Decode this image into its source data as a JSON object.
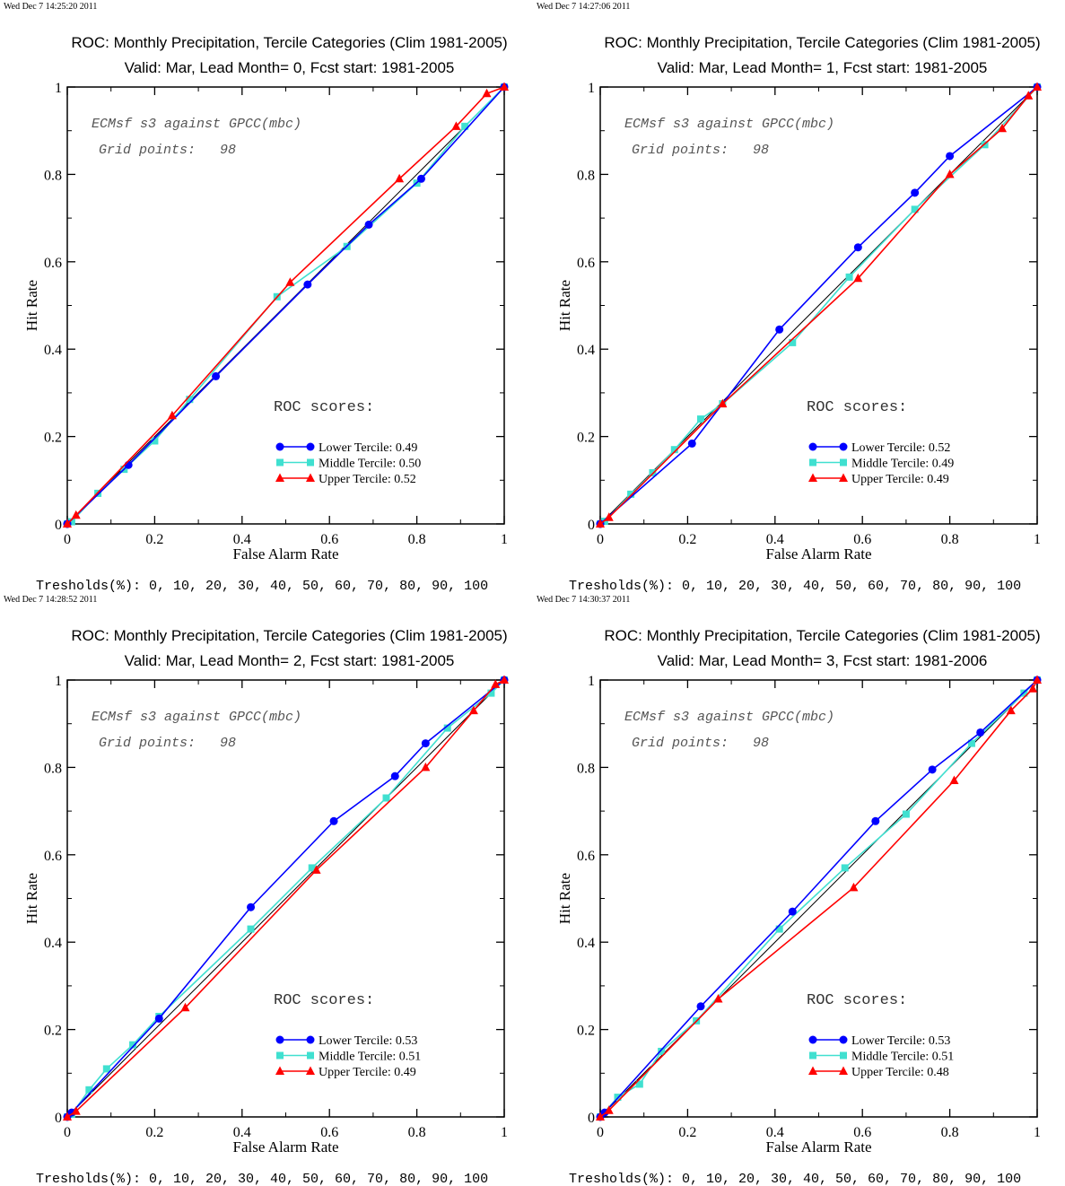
{
  "tresholds_label": "Tresholds(%): 0, 10, 20, 30, 40, 50, 60, 70, 80, 90, 100",
  "common": {
    "title": "ROC: Monthly Precipitation, Tercile Categories (Clim 1981-2005)",
    "xlabel": "False Alarm Rate",
    "ylabel": "Hit Rate",
    "annotation1": "ECMsf s3 against GPCC(mbc)",
    "annotation2": "Grid points:   98",
    "roc_scores_label": "ROC scores:",
    "xlim": [
      0,
      1
    ],
    "ylim": [
      0,
      1
    ],
    "xticks": [
      "0",
      "0.2",
      "0.4",
      "0.6",
      "0.8",
      "1"
    ],
    "yticks": [
      "0",
      "0.2",
      "0.4",
      "0.6",
      "0.8",
      "1"
    ],
    "colors": {
      "lower": "#0000ff",
      "middle": "#40e0d0",
      "upper": "#ff0000",
      "diagonal": "#000000"
    }
  },
  "chart_data": [
    {
      "type": "line",
      "timestamp": "Wed Dec  7 14:25:20 2011",
      "title": "ROC: Monthly Precipitation, Tercile Categories (Clim 1981-2005)",
      "subtitle": "Valid: Mar, Lead Month= 0, Fcst start: 1981-2005",
      "xlabel": "False Alarm Rate",
      "ylabel": "Hit Rate",
      "series": [
        {
          "name": "Lower Tercile",
          "score": "0.49",
          "legend": "Lower Tercile: 0.49",
          "x": [
            1,
            0.81,
            0.69,
            0.55,
            0.34,
            0.14,
            0,
            0
          ],
          "y": [
            1,
            0.79,
            0.685,
            0.548,
            0.338,
            0.135,
            0,
            0
          ]
        },
        {
          "name": "Middle Tercile",
          "score": "0.50",
          "legend": "Middle Tercile: 0.50",
          "x": [
            1,
            0.91,
            0.8,
            0.64,
            0.48,
            0.28,
            0.2,
            0.13,
            0.07,
            0.01,
            0
          ],
          "y": [
            1,
            0.91,
            0.78,
            0.635,
            0.52,
            0.285,
            0.19,
            0.125,
            0.07,
            0.005,
            0
          ]
        },
        {
          "name": "Upper Tercile",
          "score": "0.52",
          "legend": "Upper Tercile: 0.52",
          "x": [
            1,
            0.96,
            0.89,
            0.76,
            0.51,
            0.24,
            0.02,
            0
          ],
          "y": [
            1,
            0.985,
            0.91,
            0.79,
            0.553,
            0.248,
            0.02,
            0
          ]
        }
      ]
    },
    {
      "type": "line",
      "timestamp": "Wed Dec  7 14:27:06 2011",
      "title": "ROC: Monthly Precipitation, Tercile Categories (Clim 1981-2005)",
      "subtitle": "Valid: Mar, Lead Month= 1, Fcst start: 1981-2005",
      "xlabel": "False Alarm Rate",
      "ylabel": "Hit Rate",
      "series": [
        {
          "name": "Lower Tercile",
          "score": "0.52",
          "legend": "Lower Tercile: 0.52",
          "x": [
            1,
            0.8,
            0.72,
            0.59,
            0.41,
            0.21,
            0,
            0
          ],
          "y": [
            1,
            0.842,
            0.758,
            0.633,
            0.445,
            0.184,
            0,
            0
          ]
        },
        {
          "name": "Middle Tercile",
          "score": "0.49",
          "legend": "Middle Tercile: 0.49",
          "x": [
            1,
            0.88,
            0.72,
            0.57,
            0.44,
            0.28,
            0.23,
            0.17,
            0.12,
            0.07,
            0.01,
            0
          ],
          "y": [
            1,
            0.868,
            0.72,
            0.565,
            0.415,
            0.275,
            0.24,
            0.17,
            0.117,
            0.068,
            0.006,
            0
          ]
        },
        {
          "name": "Upper Tercile",
          "score": "0.49",
          "legend": "Upper Tercile: 0.49",
          "x": [
            1,
            0.98,
            0.92,
            0.8,
            0.59,
            0.28,
            0.02,
            0
          ],
          "y": [
            1,
            0.98,
            0.905,
            0.8,
            0.562,
            0.275,
            0.015,
            0
          ]
        }
      ]
    },
    {
      "type": "line",
      "timestamp": "Wed Dec  7 14:28:52 2011",
      "title": "ROC: Monthly Precipitation, Tercile Categories (Clim 1981-2005)",
      "subtitle": "Valid: Mar, Lead Month= 2, Fcst start: 1981-2005",
      "xlabel": "False Alarm Rate",
      "ylabel": "Hit Rate",
      "series": [
        {
          "name": "Lower Tercile",
          "score": "0.53",
          "legend": "Lower Tercile: 0.53",
          "x": [
            1,
            0.82,
            0.75,
            0.61,
            0.42,
            0.21,
            0.01,
            0
          ],
          "y": [
            1,
            0.855,
            0.78,
            0.677,
            0.48,
            0.225,
            0.01,
            0
          ]
        },
        {
          "name": "Middle Tercile",
          "score": "0.51",
          "legend": "Middle Tercile: 0.51",
          "x": [
            1,
            0.97,
            0.87,
            0.73,
            0.56,
            0.42,
            0.21,
            0.15,
            0.09,
            0.05,
            0.01,
            0
          ],
          "y": [
            1,
            0.97,
            0.89,
            0.73,
            0.57,
            0.43,
            0.23,
            0.165,
            0.11,
            0.062,
            0.006,
            0
          ]
        },
        {
          "name": "Upper Tercile",
          "score": "0.49",
          "legend": "Upper Tercile: 0.49",
          "x": [
            1,
            0.98,
            0.93,
            0.82,
            0.57,
            0.27,
            0.02,
            0
          ],
          "y": [
            1,
            0.99,
            0.93,
            0.8,
            0.565,
            0.25,
            0.013,
            0
          ]
        }
      ]
    },
    {
      "type": "line",
      "timestamp": "Wed Dec  7 14:30:37 2011",
      "title": "ROC: Monthly Precipitation, Tercile Categories (Clim 1981-2005)",
      "subtitle": "Valid: Mar, Lead Month= 3, Fcst start: 1981-2006",
      "xlabel": "False Alarm Rate",
      "ylabel": "Hit Rate",
      "series": [
        {
          "name": "Lower Tercile",
          "score": "0.53",
          "legend": "Lower Tercile: 0.53",
          "x": [
            1,
            0.87,
            0.76,
            0.63,
            0.44,
            0.23,
            0.01,
            0
          ],
          "y": [
            1,
            0.88,
            0.795,
            0.677,
            0.47,
            0.253,
            0.01,
            0
          ]
        },
        {
          "name": "Middle Tercile",
          "score": "0.51",
          "legend": "Middle Tercile: 0.51",
          "x": [
            1,
            0.97,
            0.85,
            0.7,
            0.56,
            0.41,
            0.22,
            0.14,
            0.09,
            0.04,
            0
          ],
          "y": [
            1,
            0.97,
            0.855,
            0.693,
            0.57,
            0.43,
            0.22,
            0.15,
            0.075,
            0.045,
            0
          ]
        },
        {
          "name": "Upper Tercile",
          "score": "0.48",
          "legend": "Upper Tercile: 0.48",
          "x": [
            1,
            0.99,
            0.94,
            0.81,
            0.58,
            0.27,
            0.02,
            0
          ],
          "y": [
            1,
            0.98,
            0.93,
            0.77,
            0.525,
            0.27,
            0.015,
            0
          ]
        }
      ]
    }
  ]
}
